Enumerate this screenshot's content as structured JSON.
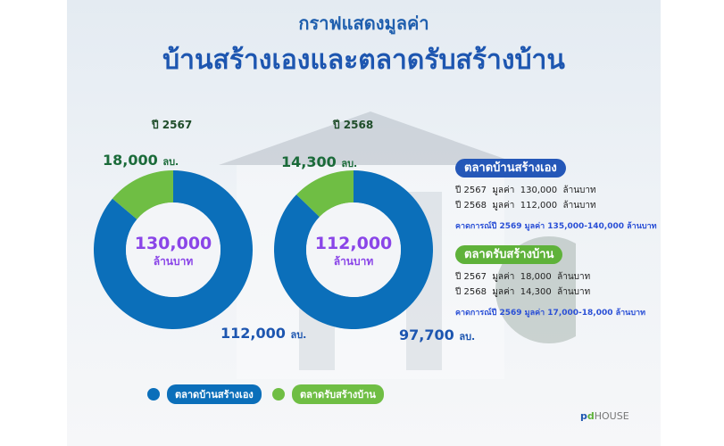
{
  "title_line1": "กราฟแสดงมูลค่า",
  "title_line2": "บ้านสร้างเองและตลาดรับสร้างบ้าน",
  "colors": {
    "self_build": "#0b6fba",
    "contractor": "#6fbe44",
    "center_text": "#8a45e8"
  },
  "chart_data": [
    {
      "type": "pie",
      "donut": true,
      "title": "ปี 2567",
      "center_value": "130,000",
      "center_unit": "ล้านบาท",
      "slices": [
        {
          "label": "ตลาดบ้านสร้างเอง",
          "value": 112000,
          "display": "112,000",
          "unit": "ลบ."
        },
        {
          "label": "ตลาดรับสร้างบ้าน",
          "value": 18000,
          "display": "18,000",
          "unit": "ลบ."
        }
      ]
    },
    {
      "type": "pie",
      "donut": true,
      "title": "ปี 2568",
      "center_value": "112,000",
      "center_unit": "ล้านบาท",
      "slices": [
        {
          "label": "ตลาดบ้านสร้างเอง",
          "value": 97700,
          "display": "97,700",
          "unit": "ลบ."
        },
        {
          "label": "ตลาดรับสร้างบ้าน",
          "value": 14300,
          "display": "14,300",
          "unit": "ลบ."
        }
      ]
    }
  ],
  "info": [
    {
      "header": "ตลาดบ้านสร้างเอง",
      "rows": [
        [
          "ปี 2567",
          "มูลค่า",
          "130,000",
          "ล้านบาท"
        ],
        [
          "ปี 2568",
          "มูลค่า",
          "112,000",
          "ล้านบาท"
        ]
      ],
      "forecast": "คาดการณ์ปี 2569 มูลค่า 135,000-140,000 ล้านบาท"
    },
    {
      "header": "ตลาดรับสร้างบ้าน",
      "rows": [
        [
          "ปี 2567",
          "มูลค่า",
          "18,000",
          "ล้านบาท"
        ],
        [
          "ปี 2568",
          "มูลค่า",
          "14,300",
          "ล้านบาท"
        ]
      ],
      "forecast": "คาดการณ์ปี 2569 มูลค่า 17,000-18,000 ล้านบาท"
    }
  ],
  "legend": [
    "ตลาดบ้านสร้างเอง",
    "ตลาดรับสร้างบ้าน"
  ],
  "logo": "pdHOUSE"
}
